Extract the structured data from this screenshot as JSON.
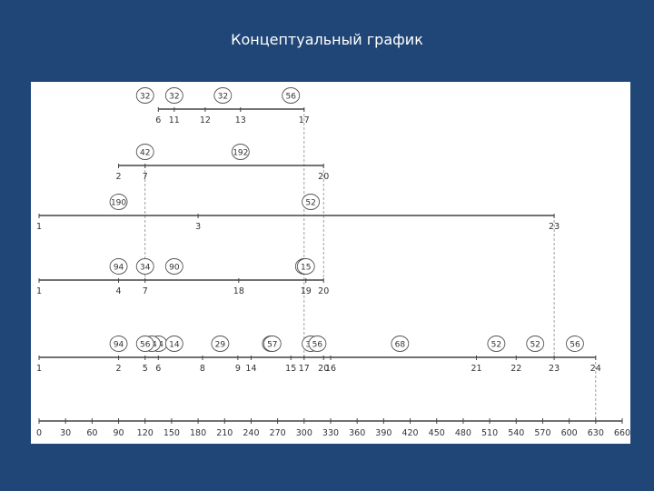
{
  "slide": {
    "title": "Концептуальный график"
  },
  "diagram": {
    "rows": [
      {
        "start": 6,
        "end": 17,
        "ticks": [
          {
            "x": 6,
            "label": "6"
          },
          {
            "x": 11,
            "label": "11"
          },
          {
            "x": 12,
            "label": "12"
          },
          {
            "x": 13,
            "label": "13"
          },
          {
            "x": 17,
            "label": "17"
          }
        ],
        "bubbles": [
          {
            "at": 7,
            "label": "32"
          },
          {
            "at": 11,
            "label": "32"
          },
          {
            "at": 12.5,
            "label": "32"
          },
          {
            "at": 15,
            "label": "56"
          }
        ]
      },
      {
        "start": 2,
        "end": 20,
        "ticks": [
          {
            "x": 2,
            "label": "2"
          },
          {
            "x": 7,
            "label": "7"
          },
          {
            "x": 20,
            "label": "20"
          }
        ],
        "bubbles": [
          {
            "at": 5,
            "label": "42"
          },
          {
            "at": 13,
            "label": "192"
          }
        ]
      },
      {
        "start": 1,
        "end": 23,
        "ticks": [
          {
            "x": 1,
            "label": "1"
          },
          {
            "x": 3,
            "label": "3"
          },
          {
            "x": 23,
            "label": "23"
          }
        ],
        "bubbles": [
          {
            "at": 2,
            "label": "190"
          },
          {
            "at": 15.5,
            "label": "52"
          }
        ]
      },
      {
        "start": 1,
        "end": 20,
        "ticks": [
          {
            "x": 1,
            "label": "1"
          },
          {
            "x": 4,
            "label": "4"
          },
          {
            "x": 7,
            "label": "7"
          },
          {
            "x": 18,
            "label": "18"
          },
          {
            "x": 19,
            "label": "19"
          },
          {
            "x": 20,
            "label": "20"
          }
        ],
        "bubbles": [
          {
            "at": 2,
            "label": "94"
          },
          {
            "at": 5,
            "label": "34"
          },
          {
            "at": 11,
            "label": "90"
          },
          {
            "at": 17,
            "label": "66"
          },
          {
            "at": 19,
            "label": "15"
          }
        ]
      },
      {
        "start": 1,
        "end": 24,
        "ticks": [
          {
            "x": 1,
            "label": "1"
          },
          {
            "x": 2,
            "label": "2"
          },
          {
            "x": 5,
            "label": "5"
          },
          {
            "x": 6,
            "label": "6"
          },
          {
            "x": 8,
            "label": "8"
          },
          {
            "x": 9,
            "label": "9"
          },
          {
            "x": 14,
            "label": "14"
          },
          {
            "x": 15,
            "label": "15"
          },
          {
            "x": 16,
            "label": "16"
          },
          {
            "x": 17,
            "label": "17"
          },
          {
            "x": 20,
            "label": "20"
          },
          {
            "x": 21,
            "label": "21"
          },
          {
            "x": 22,
            "label": "22"
          },
          {
            "x": 23,
            "label": "23"
          },
          {
            "x": 24,
            "label": "24"
          }
        ],
        "bubbles": [
          {
            "at": 2,
            "label": "94"
          },
          {
            "at": 3.5,
            "label": "14"
          },
          {
            "at": 5.5,
            "label": "14"
          },
          {
            "at": 7,
            "label": "56"
          },
          {
            "at": 8.5,
            "label": "29"
          },
          {
            "at": 11,
            "label": "14"
          },
          {
            "at": 14.5,
            "label": "32"
          },
          {
            "at": 15.5,
            "label": "38"
          },
          {
            "at": 16.5,
            "label": "56"
          },
          {
            "at": 18.5,
            "label": "57"
          },
          {
            "at": 20.5,
            "label": "68"
          },
          {
            "at": 21.5,
            "label": "52"
          },
          {
            "at": 22.5,
            "label": "52"
          },
          {
            "at": 23.5,
            "label": "56"
          }
        ]
      }
    ],
    "axis": {
      "min": 0,
      "max": 660,
      "step": 30,
      "labels": [
        "0",
        "30",
        "60",
        "90",
        "120",
        "150",
        "180",
        "210",
        "240",
        "270",
        "300",
        "330",
        "360",
        "390",
        "420",
        "450",
        "480",
        "510",
        "540",
        "570",
        "600",
        "630",
        "660"
      ]
    },
    "event_times": {
      "1": 0,
      "2": 90,
      "3": 180,
      "4": 90,
      "5": 120,
      "6": 135,
      "7": 120,
      "8": 185,
      "9": 225,
      "11": 153,
      "12": 188,
      "13": 228,
      "14": 240,
      "15": 285,
      "16": 330,
      "17": 300,
      "18": 226,
      "19": 302,
      "20": 322,
      "21": 495,
      "22": 540,
      "23": 583,
      "24": 630
    },
    "links": [
      {
        "event": "17",
        "from_row": 0,
        "to_row": 4
      },
      {
        "event": "7",
        "from_row": 1,
        "to_row": 3
      },
      {
        "event": "20",
        "from_row": 1,
        "to_row": 3
      },
      {
        "event": "23",
        "from_row": 2,
        "to_row": 4
      },
      {
        "event": "24",
        "from_row": 4,
        "to_row": 5
      }
    ]
  }
}
